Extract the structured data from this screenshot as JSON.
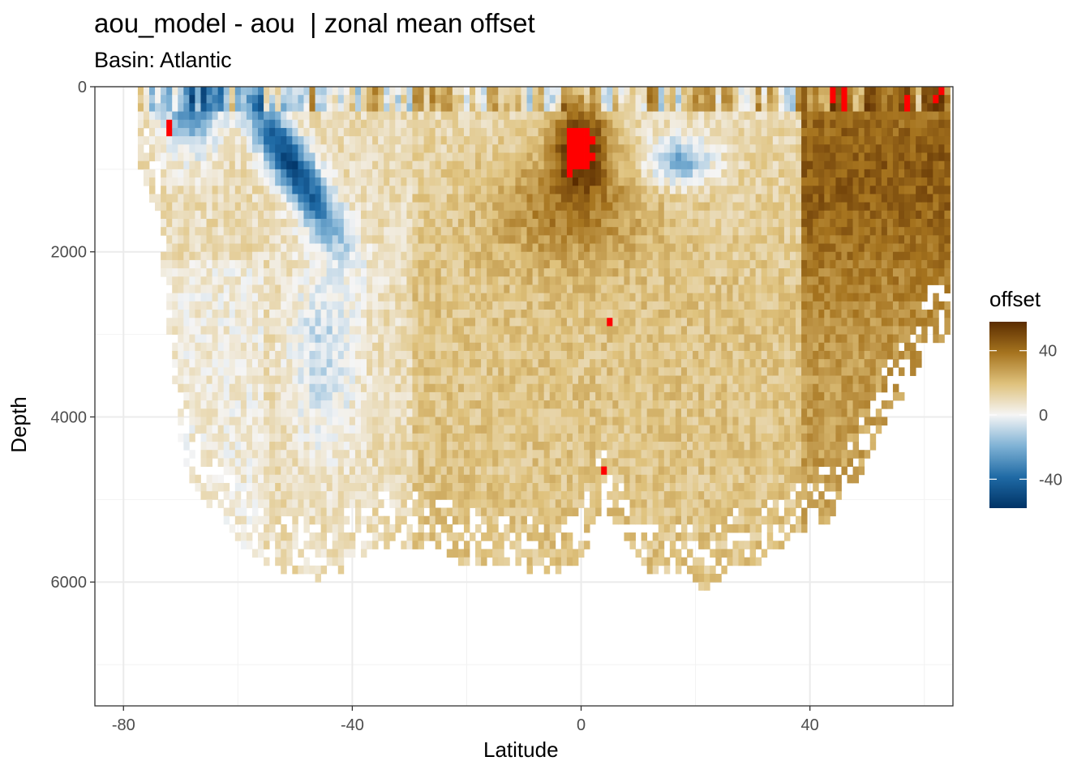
{
  "chart_data": {
    "type": "heatmap",
    "title": "aou_model - aou  | zonal mean offset",
    "subtitle": "Basin: Atlantic",
    "xlabel": "Latitude",
    "ylabel": "Depth",
    "xlim": [
      -85,
      65
    ],
    "ylim": [
      0,
      7500
    ],
    "y_reversed": true,
    "x_ticks": [
      -80,
      -40,
      0,
      40
    ],
    "x_tick_labels": [
      "-80",
      "-40",
      "0",
      "40"
    ],
    "y_ticks": [
      0,
      2000,
      4000,
      6000
    ],
    "y_tick_labels": [
      "0",
      "2000",
      "4000",
      "6000"
    ],
    "grid": true,
    "legend": {
      "title": "offset",
      "placement": "right",
      "ticks": [
        40,
        0,
        -40
      ],
      "tick_labels": [
        "40",
        "0",
        "-40"
      ],
      "range": [
        -58,
        58
      ],
      "colors": [
        "#003366",
        "#1f6aa5",
        "#7fb2d5",
        "#f5f5f5",
        "#dfc27d",
        "#a6741f",
        "#5a2c00"
      ]
    },
    "out_of_range_color": "#ff0000",
    "cell_width_deg": 1,
    "cell_height_m": 100,
    "approximate_bottom_depth": [
      [
        -77,
        1000
      ],
      [
        -74,
        1500
      ],
      [
        -72,
        3000
      ],
      [
        -70,
        4300
      ],
      [
        -68,
        4800
      ],
      [
        -64,
        5100
      ],
      [
        -58,
        5600
      ],
      [
        -54,
        5800
      ],
      [
        -48,
        5900
      ],
      [
        -44,
        6000
      ],
      [
        -40,
        5700
      ],
      [
        -32,
        5500
      ],
      [
        -26,
        5600
      ],
      [
        -18,
        5800
      ],
      [
        -10,
        5800
      ],
      [
        -4,
        5900
      ],
      [
        0,
        5700
      ],
      [
        4,
        5000
      ],
      [
        8,
        5500
      ],
      [
        12,
        5900
      ],
      [
        18,
        5900
      ],
      [
        22,
        6100
      ],
      [
        26,
        5800
      ],
      [
        32,
        5700
      ],
      [
        38,
        5400
      ],
      [
        44,
        5200
      ],
      [
        48,
        4800
      ],
      [
        54,
        3900
      ],
      [
        58,
        3600
      ],
      [
        61,
        3000
      ],
      [
        64,
        3100
      ]
    ],
    "features": [
      {
        "lat_range": [
          -60,
          -42
        ],
        "depth_range": [
          200,
          1700
        ],
        "offset": -45,
        "description": "negative tongue descending southward at intermediate depth"
      },
      {
        "lat_range": [
          -72,
          -62
        ],
        "depth_range": [
          0,
          400
        ],
        "offset": -50,
        "description": "strong negative near surface, Antarctic"
      },
      {
        "lat_range": [
          -50,
          -36
        ],
        "depth_range": [
          1800,
          4200
        ],
        "offset": -8,
        "description": "weak negative deep band"
      },
      {
        "lat_range": [
          -5,
          5
        ],
        "depth_range": [
          200,
          1300
        ],
        "offset": 55,
        "description": "strong positive equatorial intermediate maximum"
      },
      {
        "lat_range": [
          -2,
          1
        ],
        "depth_range": [
          500,
          800
        ],
        "offset": 70,
        "description": "out-of-range values"
      },
      {
        "lat_range": [
          8,
          25
        ],
        "depth_range": [
          500,
          1200
        ],
        "offset": -20,
        "description": "negative lens north of equator"
      },
      {
        "lat_range": [
          40,
          64
        ],
        "depth_range": [
          100,
          3000
        ],
        "offset": 35,
        "description": "positive North Atlantic"
      },
      {
        "lat_range": [
          -30,
          60
        ],
        "depth_range": [
          2500,
          6000
        ],
        "offset": 18,
        "description": "moderate positive deep water"
      }
    ]
  }
}
